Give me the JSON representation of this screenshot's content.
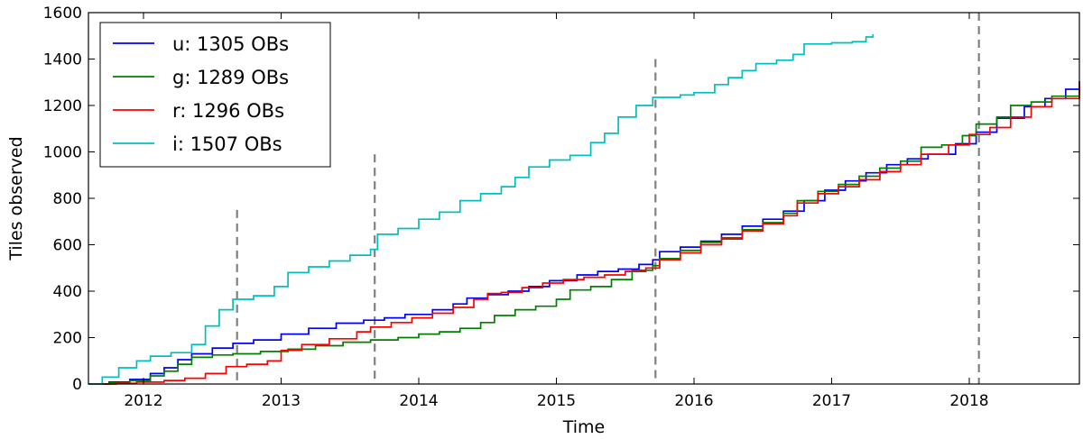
{
  "chart_data": {
    "type": "line",
    "xlabel": "Time",
    "ylabel": "Tiles observed",
    "xlim": [
      2011.6,
      2018.8
    ],
    "ylim": [
      0,
      1600
    ],
    "xticks": [
      2012,
      2013,
      2014,
      2015,
      2016,
      2017,
      2018
    ],
    "yticks": [
      0,
      200,
      400,
      600,
      800,
      1000,
      1200,
      1400,
      1600
    ],
    "grid": false,
    "legend_position": "top-left",
    "series": [
      {
        "name": "u",
        "legend_label": "u: 1305 OBs",
        "color": "#0000ff",
        "points": [
          [
            2011.6,
            0
          ],
          [
            2011.75,
            8
          ],
          [
            2011.9,
            20
          ],
          [
            2012.05,
            45
          ],
          [
            2012.15,
            70
          ],
          [
            2012.25,
            105
          ],
          [
            2012.35,
            130
          ],
          [
            2012.5,
            155
          ],
          [
            2012.65,
            175
          ],
          [
            2012.8,
            190
          ],
          [
            2013.0,
            215
          ],
          [
            2013.2,
            240
          ],
          [
            2013.4,
            262
          ],
          [
            2013.6,
            275
          ],
          [
            2013.75,
            285
          ],
          [
            2013.9,
            300
          ],
          [
            2014.1,
            320
          ],
          [
            2014.25,
            345
          ],
          [
            2014.35,
            370
          ],
          [
            2014.5,
            385
          ],
          [
            2014.65,
            400
          ],
          [
            2014.8,
            420
          ],
          [
            2014.95,
            445
          ],
          [
            2015.15,
            470
          ],
          [
            2015.3,
            485
          ],
          [
            2015.45,
            495
          ],
          [
            2015.6,
            515
          ],
          [
            2015.7,
            535
          ],
          [
            2015.75,
            570
          ],
          [
            2015.9,
            590
          ],
          [
            2016.05,
            615
          ],
          [
            2016.2,
            645
          ],
          [
            2016.35,
            680
          ],
          [
            2016.5,
            710
          ],
          [
            2016.65,
            745
          ],
          [
            2016.8,
            790
          ],
          [
            2016.95,
            835
          ],
          [
            2017.1,
            875
          ],
          [
            2017.25,
            910
          ],
          [
            2017.4,
            945
          ],
          [
            2017.55,
            970
          ],
          [
            2017.7,
            990
          ],
          [
            2017.9,
            1035
          ],
          [
            2018.05,
            1085
          ],
          [
            2018.2,
            1145
          ],
          [
            2018.4,
            1195
          ],
          [
            2018.55,
            1230
          ],
          [
            2018.7,
            1270
          ],
          [
            2018.8,
            1305
          ]
        ]
      },
      {
        "name": "g",
        "legend_label": "g: 1289 OBs",
        "color": "#008000",
        "points": [
          [
            2011.6,
            0
          ],
          [
            2011.75,
            5
          ],
          [
            2011.9,
            15
          ],
          [
            2012.05,
            35
          ],
          [
            2012.15,
            55
          ],
          [
            2012.25,
            85
          ],
          [
            2012.35,
            115
          ],
          [
            2012.5,
            125
          ],
          [
            2012.65,
            130
          ],
          [
            2012.85,
            140
          ],
          [
            2013.05,
            150
          ],
          [
            2013.25,
            165
          ],
          [
            2013.45,
            180
          ],
          [
            2013.65,
            190
          ],
          [
            2013.85,
            200
          ],
          [
            2014.0,
            215
          ],
          [
            2014.15,
            225
          ],
          [
            2014.3,
            240
          ],
          [
            2014.45,
            265
          ],
          [
            2014.55,
            295
          ],
          [
            2014.7,
            320
          ],
          [
            2014.85,
            335
          ],
          [
            2015.0,
            365
          ],
          [
            2015.1,
            405
          ],
          [
            2015.25,
            420
          ],
          [
            2015.4,
            450
          ],
          [
            2015.55,
            490
          ],
          [
            2015.7,
            510
          ],
          [
            2015.75,
            540
          ],
          [
            2015.9,
            575
          ],
          [
            2016.05,
            610
          ],
          [
            2016.2,
            630
          ],
          [
            2016.35,
            665
          ],
          [
            2016.5,
            695
          ],
          [
            2016.65,
            735
          ],
          [
            2016.75,
            790
          ],
          [
            2016.9,
            830
          ],
          [
            2017.05,
            860
          ],
          [
            2017.2,
            895
          ],
          [
            2017.35,
            930
          ],
          [
            2017.5,
            960
          ],
          [
            2017.65,
            1020
          ],
          [
            2017.8,
            1030
          ],
          [
            2017.95,
            1070
          ],
          [
            2018.05,
            1120
          ],
          [
            2018.2,
            1150
          ],
          [
            2018.3,
            1200
          ],
          [
            2018.45,
            1215
          ],
          [
            2018.6,
            1240
          ],
          [
            2018.8,
            1289
          ]
        ]
      },
      {
        "name": "r",
        "legend_label": "r: 1296 OBs",
        "color": "#ff0000",
        "points": [
          [
            2011.6,
            0
          ],
          [
            2011.8,
            3
          ],
          [
            2011.95,
            8
          ],
          [
            2012.15,
            15
          ],
          [
            2012.3,
            25
          ],
          [
            2012.45,
            45
          ],
          [
            2012.6,
            75
          ],
          [
            2012.75,
            85
          ],
          [
            2012.9,
            100
          ],
          [
            2013.0,
            145
          ],
          [
            2013.15,
            170
          ],
          [
            2013.35,
            195
          ],
          [
            2013.55,
            225
          ],
          [
            2013.65,
            245
          ],
          [
            2013.8,
            265
          ],
          [
            2013.95,
            285
          ],
          [
            2014.1,
            305
          ],
          [
            2014.25,
            330
          ],
          [
            2014.4,
            365
          ],
          [
            2014.5,
            390
          ],
          [
            2014.6,
            395
          ],
          [
            2014.75,
            415
          ],
          [
            2014.9,
            435
          ],
          [
            2015.05,
            450
          ],
          [
            2015.2,
            460
          ],
          [
            2015.35,
            470
          ],
          [
            2015.5,
            485
          ],
          [
            2015.65,
            500
          ],
          [
            2015.75,
            535
          ],
          [
            2015.9,
            565
          ],
          [
            2016.05,
            600
          ],
          [
            2016.2,
            625
          ],
          [
            2016.35,
            660
          ],
          [
            2016.5,
            690
          ],
          [
            2016.65,
            725
          ],
          [
            2016.75,
            780
          ],
          [
            2016.9,
            820
          ],
          [
            2017.05,
            850
          ],
          [
            2017.2,
            880
          ],
          [
            2017.35,
            915
          ],
          [
            2017.5,
            945
          ],
          [
            2017.65,
            990
          ],
          [
            2017.85,
            1030
          ],
          [
            2018.0,
            1075
          ],
          [
            2018.15,
            1105
          ],
          [
            2018.3,
            1150
          ],
          [
            2018.45,
            1195
          ],
          [
            2018.6,
            1230
          ],
          [
            2018.8,
            1296
          ]
        ]
      },
      {
        "name": "i",
        "legend_label": "i: 1507 OBs",
        "color": "#00bfbf",
        "points": [
          [
            2011.6,
            0
          ],
          [
            2011.7,
            30
          ],
          [
            2011.82,
            70
          ],
          [
            2011.95,
            100
          ],
          [
            2012.05,
            120
          ],
          [
            2012.2,
            135
          ],
          [
            2012.35,
            170
          ],
          [
            2012.45,
            250
          ],
          [
            2012.55,
            320
          ],
          [
            2012.65,
            365
          ],
          [
            2012.8,
            380
          ],
          [
            2012.95,
            420
          ],
          [
            2013.05,
            480
          ],
          [
            2013.2,
            505
          ],
          [
            2013.35,
            530
          ],
          [
            2013.5,
            555
          ],
          [
            2013.65,
            580
          ],
          [
            2013.7,
            645
          ],
          [
            2013.85,
            670
          ],
          [
            2014.0,
            710
          ],
          [
            2014.15,
            740
          ],
          [
            2014.3,
            790
          ],
          [
            2014.45,
            820
          ],
          [
            2014.6,
            850
          ],
          [
            2014.7,
            890
          ],
          [
            2014.8,
            935
          ],
          [
            2014.95,
            965
          ],
          [
            2015.1,
            985
          ],
          [
            2015.25,
            1040
          ],
          [
            2015.35,
            1080
          ],
          [
            2015.45,
            1150
          ],
          [
            2015.58,
            1200
          ],
          [
            2015.7,
            1235
          ],
          [
            2015.9,
            1245
          ],
          [
            2016.0,
            1255
          ],
          [
            2016.15,
            1290
          ],
          [
            2016.25,
            1320
          ],
          [
            2016.35,
            1350
          ],
          [
            2016.45,
            1380
          ],
          [
            2016.6,
            1395
          ],
          [
            2016.72,
            1420
          ],
          [
            2016.8,
            1465
          ],
          [
            2017.0,
            1470
          ],
          [
            2017.15,
            1475
          ],
          [
            2017.25,
            1495
          ],
          [
            2017.3,
            1507
          ]
        ]
      }
    ],
    "vlines": [
      {
        "x": 2012.68,
        "y_top": 750
      },
      {
        "x": 2013.68,
        "y_top": 990
      },
      {
        "x": 2015.72,
        "y_top": 1400
      },
      {
        "x": 2018.07,
        "y_top": 1600
      }
    ]
  }
}
